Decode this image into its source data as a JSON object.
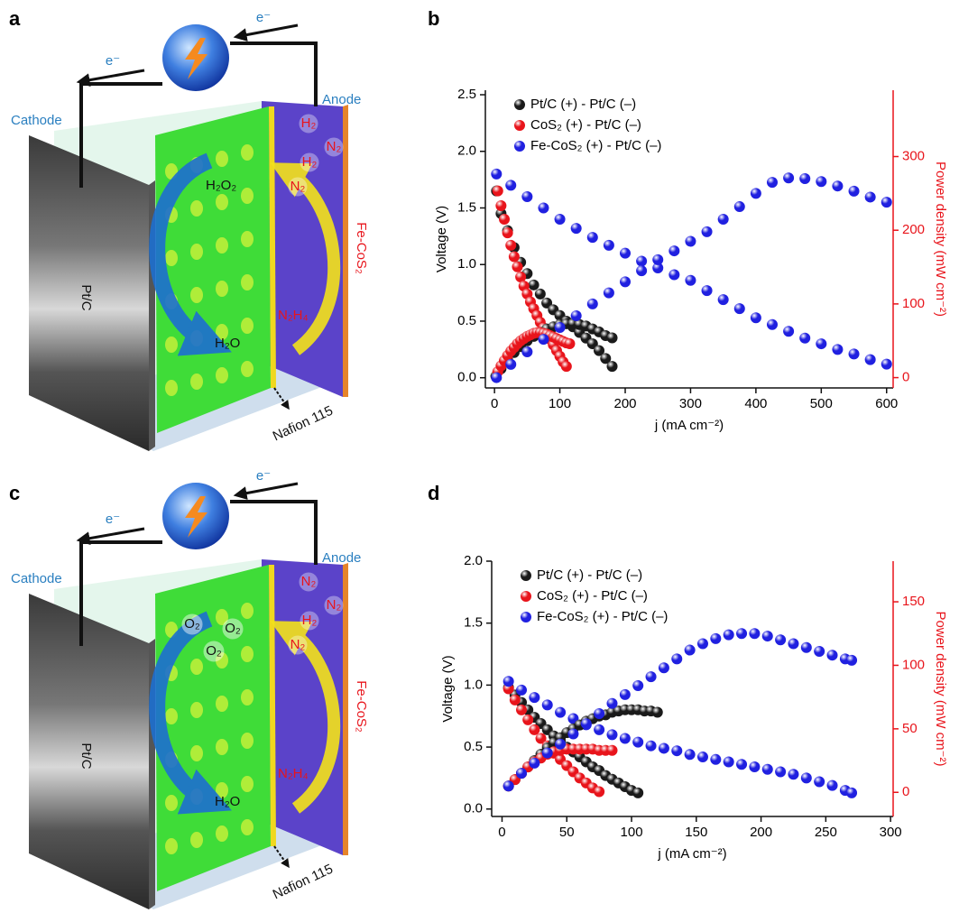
{
  "panel_labels": [
    "a",
    "b",
    "c",
    "d"
  ],
  "schematics": [
    {
      "electron_labels": [
        "e⁻",
        "e⁻"
      ],
      "cathode": "Cathode",
      "anode": "Anode",
      "electrode": "Pt/C",
      "anode_material": "Fe-CoS₂",
      "oxidant": "H₂O₂",
      "product": "H₂O",
      "fuel": "N₂H₄",
      "membrane": "Nafion 115",
      "bubbles": [
        "H₂",
        "N₂",
        "H₂",
        "N₂"
      ]
    },
    {
      "electron_labels": [
        "e⁻",
        "e⁻"
      ],
      "cathode": "Cathode",
      "anode": "Anode",
      "electrode": "Pt/C",
      "anode_material": "Fe-CoS₂",
      "oxidant_bubbles": [
        "O₂",
        "O₂",
        "O₂"
      ],
      "product": "H₂O",
      "fuel": "N₂H₄",
      "membrane": "Nafion 115",
      "bubbles": [
        "N₂",
        "N₂",
        "H₂",
        "N₂"
      ]
    }
  ],
  "chart_data": [
    {
      "type": "scatter",
      "x_label": "j (mA cm⁻²)",
      "y_label": "Voltage (V)",
      "y2_label": "Power density (mW cm⁻²)",
      "y2_color": "#e8141b",
      "legend": "upper left",
      "xlim": [
        -14,
        610
      ],
      "ylim": [
        -0.09,
        2.54
      ],
      "y2lim": [
        -14,
        390
      ],
      "xticks": [
        0,
        100,
        200,
        300,
        400,
        500,
        600
      ],
      "yticks": [
        {
          "value": 0,
          "label": "0.0"
        },
        {
          "value": 0.5,
          "label": "0.5"
        },
        {
          "value": 1,
          "label": "1.0"
        },
        {
          "value": 1.5,
          "label": "1.5"
        },
        {
          "value": 2,
          "label": "2.0"
        },
        {
          "value": 2.5,
          "label": "2.5"
        }
      ],
      "y2ticks": [
        0,
        100,
        200,
        300
      ],
      "series": [
        {
          "name": "Pt/C (+) - Pt/C (–)",
          "color": "#1a1a1a",
          "x": [
            3,
            10,
            20,
            30,
            40,
            50,
            60,
            70,
            80,
            90,
            100,
            110,
            120,
            130,
            140,
            150,
            160,
            170,
            180
          ],
          "values": [
            1.65,
            1.45,
            1.3,
            1.15,
            1.02,
            0.92,
            0.82,
            0.74,
            0.66,
            0.6,
            0.55,
            0.5,
            0.45,
            0.4,
            0.35,
            0.3,
            0.24,
            0.17,
            0.1
          ]
        },
        {
          "name": "CoS₂ (+) - Pt/C (–)",
          "color": "#e8141b",
          "x": [
            5,
            10,
            15,
            20,
            25,
            30,
            35,
            40,
            45,
            50,
            55,
            60,
            65,
            70,
            75,
            80,
            85,
            90,
            95,
            100,
            105,
            110
          ],
          "values": [
            1.65,
            1.52,
            1.4,
            1.28,
            1.17,
            1.07,
            0.98,
            0.89,
            0.81,
            0.74,
            0.67,
            0.61,
            0.55,
            0.49,
            0.44,
            0.39,
            0.34,
            0.29,
            0.24,
            0.19,
            0.14,
            0.1
          ]
        },
        {
          "name": "Fe-CoS₂ (+) - Pt/C (–)",
          "color": "#2020e0",
          "x": [
            3,
            25,
            50,
            75,
            100,
            125,
            150,
            175,
            200,
            225,
            250,
            275,
            300,
            325,
            350,
            375,
            400,
            425,
            450,
            475,
            500,
            525,
            550,
            575,
            600
          ],
          "values": [
            1.8,
            1.7,
            1.6,
            1.5,
            1.4,
            1.32,
            1.24,
            1.17,
            1.1,
            1.03,
            0.97,
            0.91,
            0.86,
            0.77,
            0.69,
            0.61,
            0.53,
            0.47,
            0.41,
            0.35,
            0.3,
            0.25,
            0.21,
            0.16,
            0.12
          ]
        },
        {
          "color": "#1a1a1a",
          "axis": "y2",
          "x": [
            2,
            10,
            20,
            30,
            40,
            50,
            60,
            70,
            80,
            90,
            100,
            110,
            120,
            130,
            140,
            150,
            160,
            170,
            180
          ],
          "values": [
            2,
            12,
            24,
            34,
            42,
            50,
            56,
            61,
            66,
            69,
            72,
            73,
            73,
            72,
            70,
            66,
            62,
            57,
            54
          ]
        },
        {
          "color": "#e8141b",
          "axis": "y2",
          "x": [
            5,
            10,
            15,
            20,
            25,
            30,
            35,
            40,
            45,
            50,
            55,
            60,
            65,
            70,
            75,
            80,
            85,
            90,
            95,
            100,
            105,
            110,
            115
          ],
          "values": [
            8,
            16,
            23,
            30,
            36,
            41,
            46,
            50,
            53,
            56,
            58,
            60,
            61,
            61,
            60,
            59,
            57,
            55,
            53,
            51,
            49,
            47,
            46
          ]
        },
        {
          "color": "#2020e0",
          "axis": "y2",
          "x": [
            3,
            25,
            50,
            75,
            100,
            125,
            150,
            175,
            200,
            225,
            250,
            275,
            300,
            325,
            350,
            375,
            400,
            425,
            450,
            475,
            500,
            525,
            550,
            575,
            600
          ],
          "values": [
            0,
            18,
            35,
            52,
            68,
            84,
            100,
            115,
            130,
            145,
            160,
            172,
            185,
            198,
            215,
            232,
            250,
            265,
            271,
            270,
            266,
            260,
            253,
            245,
            238
          ]
        }
      ]
    },
    {
      "type": "scatter",
      "x_label": "j (mA cm⁻²)",
      "y_label": "Voltage (V)",
      "y2_label": "Power density (mW cm⁻²)",
      "y2_color": "#e8141b",
      "legend": "upper left",
      "xlim": [
        -8,
        302
      ],
      "ylim": [
        -0.06,
        2.0
      ],
      "y2lim": [
        -19,
        182
      ],
      "xticks": [
        0,
        50,
        100,
        150,
        200,
        250,
        300
      ],
      "yticks": [
        {
          "value": 0,
          "label": "0.0"
        },
        {
          "value": 0.5,
          "label": "0.5"
        },
        {
          "value": 1,
          "label": "1.0"
        },
        {
          "value": 1.5,
          "label": "1.5"
        },
        {
          "value": 2,
          "label": "2.0"
        }
      ],
      "y2ticks": [
        0,
        50,
        100,
        150
      ],
      "series": [
        {
          "name": "Pt/C (+) - Pt/C (–)",
          "color": "#1a1a1a",
          "x": [
            5,
            10,
            15,
            20,
            25,
            30,
            35,
            40,
            45,
            50,
            55,
            60,
            65,
            70,
            75,
            80,
            85,
            90,
            95,
            100,
            105
          ],
          "values": [
            0.98,
            0.92,
            0.86,
            0.8,
            0.74,
            0.69,
            0.64,
            0.59,
            0.55,
            0.5,
            0.46,
            0.42,
            0.38,
            0.34,
            0.31,
            0.27,
            0.24,
            0.21,
            0.18,
            0.15,
            0.13
          ]
        },
        {
          "name": "CoS₂ (+) - Pt/C (–)",
          "color": "#e8141b",
          "x": [
            5,
            10,
            15,
            20,
            25,
            30,
            35,
            40,
            45,
            50,
            55,
            60,
            65,
            70,
            75
          ],
          "values": [
            0.97,
            0.88,
            0.8,
            0.72,
            0.64,
            0.57,
            0.51,
            0.45,
            0.4,
            0.35,
            0.3,
            0.25,
            0.21,
            0.17,
            0.14
          ]
        },
        {
          "name": "Fe-CoS₂ (+) - Pt/C (–)",
          "color": "#2020e0",
          "x": [
            5,
            15,
            25,
            35,
            45,
            55,
            65,
            75,
            85,
            95,
            105,
            115,
            125,
            135,
            145,
            155,
            165,
            175,
            185,
            195,
            205,
            215,
            225,
            235,
            245,
            255,
            265,
            270
          ],
          "values": [
            1.03,
            0.96,
            0.9,
            0.84,
            0.78,
            0.73,
            0.68,
            0.64,
            0.6,
            0.57,
            0.54,
            0.51,
            0.49,
            0.47,
            0.44,
            0.42,
            0.4,
            0.38,
            0.36,
            0.34,
            0.32,
            0.3,
            0.28,
            0.25,
            0.22,
            0.19,
            0.15,
            0.13
          ]
        },
        {
          "color": "#1a1a1a",
          "axis": "y2",
          "x": [
            5,
            10,
            15,
            20,
            25,
            30,
            35,
            40,
            45,
            50,
            55,
            60,
            65,
            70,
            75,
            80,
            85,
            90,
            95,
            100,
            105,
            110,
            115,
            120
          ],
          "values": [
            5,
            10,
            15,
            20,
            25,
            30,
            35,
            39,
            43,
            47,
            50,
            53,
            56,
            58,
            60,
            61,
            63,
            64,
            65,
            65,
            65,
            64,
            64,
            63
          ]
        },
        {
          "color": "#e8141b",
          "axis": "y2",
          "x": [
            5,
            10,
            15,
            20,
            25,
            30,
            35,
            40,
            45,
            50,
            55,
            60,
            65,
            70,
            75,
            80,
            85
          ],
          "values": [
            5,
            10,
            15,
            20,
            24,
            27,
            30,
            32,
            33,
            34,
            34,
            34,
            34,
            34,
            33,
            33,
            33
          ]
        },
        {
          "color": "#2020e0",
          "axis": "y2",
          "x": [
            5,
            15,
            25,
            35,
            45,
            55,
            65,
            75,
            85,
            95,
            105,
            115,
            125,
            135,
            145,
            155,
            165,
            175,
            185,
            195,
            205,
            215,
            225,
            235,
            245,
            255,
            265,
            270
          ],
          "values": [
            5,
            15,
            23,
            31,
            38,
            46,
            54,
            62,
            70,
            77,
            84,
            91,
            98,
            105,
            112,
            117,
            121,
            124,
            125,
            125,
            123,
            120,
            117,
            114,
            111,
            108,
            105,
            104
          ]
        }
      ]
    }
  ]
}
